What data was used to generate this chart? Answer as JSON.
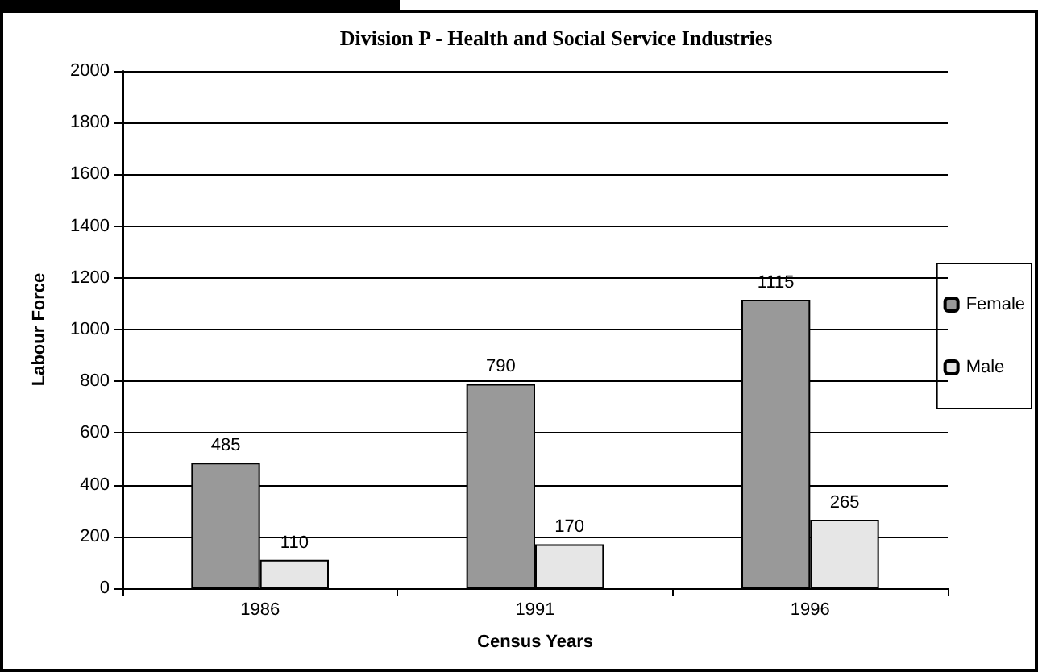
{
  "chart_data": {
    "type": "bar",
    "title": "Division P - Health and Social Service Industries",
    "xlabel": "Census Years",
    "ylabel": "Labour Force",
    "categories": [
      "1986",
      "1991",
      "1996"
    ],
    "series": [
      {
        "name": "Female",
        "color": "#999999",
        "values": [
          485,
          790,
          1115
        ]
      },
      {
        "name": "Male",
        "color": "#e6e6e6",
        "values": [
          110,
          170,
          265
        ]
      }
    ],
    "ylim": [
      0,
      2000
    ],
    "yticks": [
      0,
      200,
      400,
      600,
      800,
      1000,
      1200,
      1400,
      1600,
      1800,
      2000
    ],
    "grid": "y",
    "legend": "right",
    "data_labels": true
  }
}
